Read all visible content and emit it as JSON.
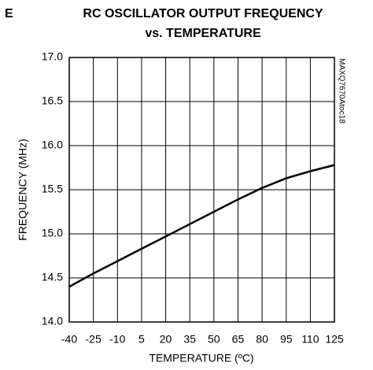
{
  "corner_text": "E",
  "chart_data": {
    "type": "line",
    "title": [
      "RC OSCILLATOR OUTPUT FREQUENCY",
      "vs. TEMPERATURE"
    ],
    "side_label": "MAXQ7670Atoc18",
    "x_label": "TEMPERATURE (ºC)",
    "y_label": "FREQUENCY (MHz)",
    "x": [
      -40,
      -25,
      -10,
      5,
      20,
      35,
      50,
      65,
      80,
      95,
      110,
      125
    ],
    "series": [
      {
        "color": "#000000",
        "values": [
          14.4,
          14.55,
          14.69,
          14.83,
          14.97,
          15.11,
          15.25,
          15.39,
          15.52,
          15.63,
          15.71,
          15.78
        ]
      }
    ],
    "xlim": [
      -40,
      125
    ],
    "xticks": [
      -40,
      -25,
      -10,
      5,
      20,
      35,
      50,
      65,
      80,
      95,
      110,
      125
    ],
    "ylim": [
      14,
      17
    ],
    "yticks": [
      {
        "value": 14,
        "label": "14.0"
      },
      {
        "value": 14.5,
        "label": "14.5"
      },
      {
        "value": 15,
        "label": "15.0"
      },
      {
        "value": 15.5,
        "label": "15.5"
      },
      {
        "value": 16,
        "label": "16.0"
      },
      {
        "value": 16.5,
        "label": "16.5"
      },
      {
        "value": 17,
        "label": "17.0"
      }
    ],
    "grid": true
  }
}
